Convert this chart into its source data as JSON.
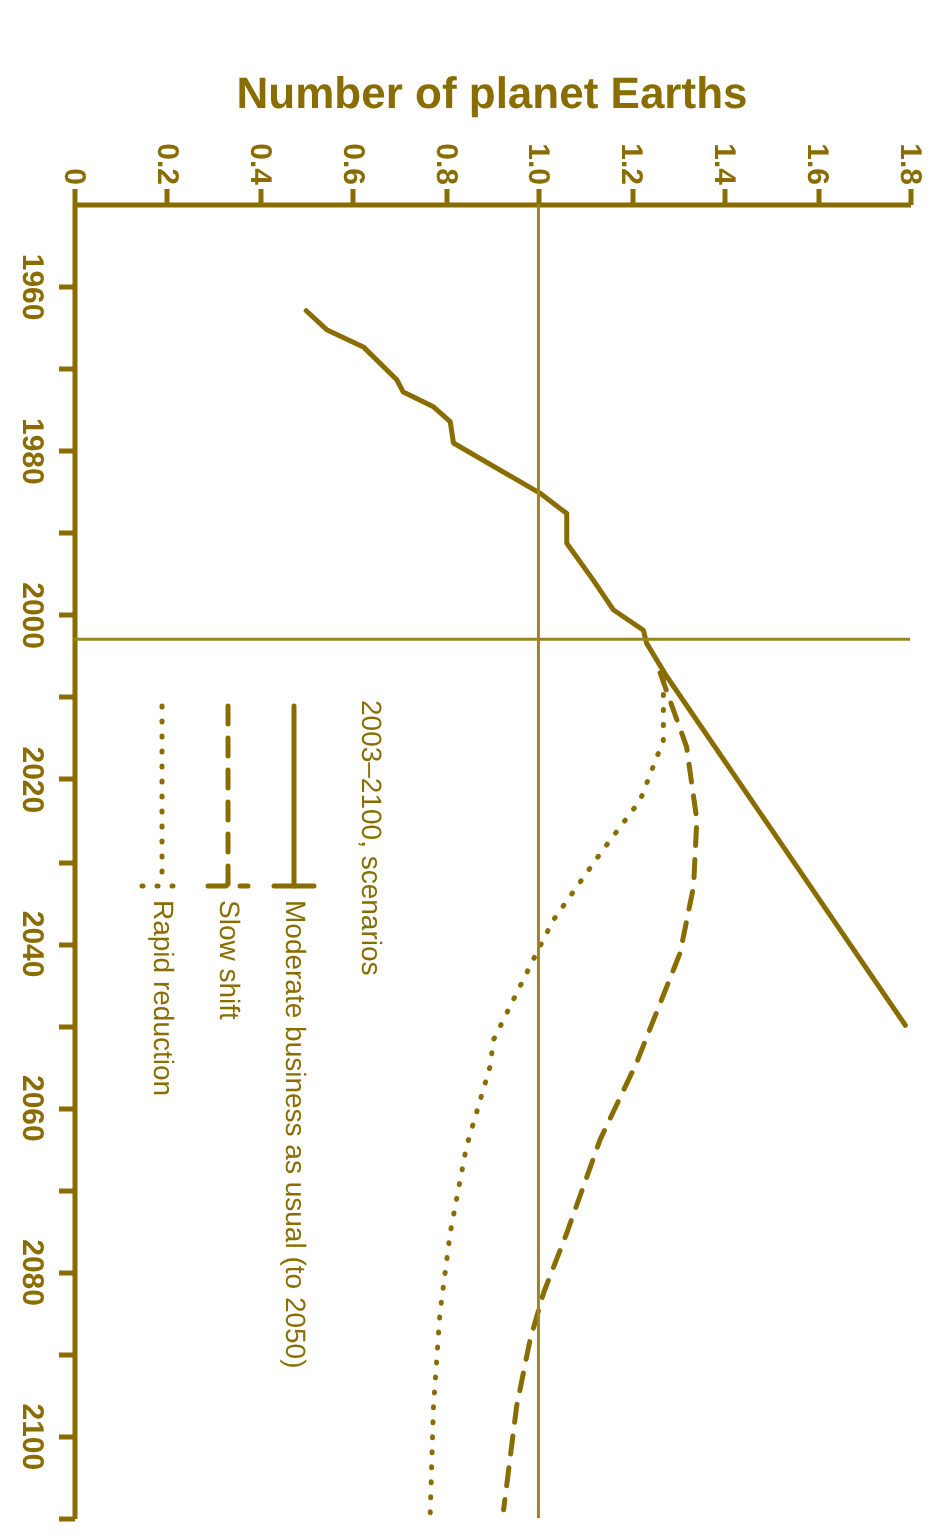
{
  "chart_data": {
    "type": "line",
    "title": "Number of planet Earths",
    "legend_title": "2003–2100, scenarios",
    "legend": "bottom left",
    "grid": false,
    "xlim": [
      0,
      1.8
    ],
    "xticks": [
      0,
      0.2,
      0.4,
      0.6,
      0.8,
      {
        "value": 1,
        "label": "1.0"
      },
      1.2,
      1.4,
      1.6,
      1.8
    ],
    "ylim": [
      2110,
      1950
    ],
    "yticks": [
      1960,
      {
        "value": 1970,
        "label": null
      },
      1980,
      {
        "value": 1990,
        "label": null
      },
      2000,
      {
        "value": 2010,
        "label": null
      },
      2020,
      {
        "value": 2030,
        "label": null
      },
      2040,
      {
        "value": 2050,
        "label": null
      },
      2060,
      {
        "value": 2070,
        "label": null
      },
      2080,
      {
        "value": 2090,
        "label": null
      },
      2100,
      {
        "value": 2110,
        "label": null
      }
    ],
    "series": [
      {
        "name": "Moderate business as usual (to 2050)",
        "color": "#8a6d00",
        "line_style": "solid",
        "x": [
          0.5,
          0.544,
          0.623,
          0.695,
          0.709,
          0.774,
          0.81,
          0.817,
          1.003,
          1.061,
          1.061,
          1.118,
          1.161,
          1.226,
          1.233,
          1.276,
          1.79
        ],
        "values": [
          1963,
          1965.3,
          1967.4,
          1971.4,
          1972.9,
          1974.7,
          1976.5,
          1979.1,
          1985.2,
          1987.7,
          1991.3,
          1995.8,
          1999.4,
          2001.9,
          2003.5,
          2007.5,
          2050
        ]
      },
      {
        "name": "Slow shift",
        "color": "#8a6d00",
        "line_style": "dashed",
        "x": [
          1.262,
          1.319,
          1.341,
          1.334,
          1.305,
          1.211,
          1.133,
          1.061,
          1.011,
          0.982,
          0.953,
          0.925
        ],
        "values": [
          2007.1,
          2016.1,
          2025,
          2033.1,
          2041.2,
          2054.6,
          2063.9,
          2075.3,
          2082.6,
          2088.3,
          2096.4,
          2109
        ]
      },
      {
        "name": "Rapid reduction",
        "color": "#8a6d00",
        "line_style": "dotted",
        "x": [
          1.269,
          1.269,
          1.219,
          1.133,
          1.032,
          0.996,
          0.903,
          0.896,
          0.845,
          0.81,
          0.788,
          0.774,
          0.767
        ],
        "values": [
          2007.9,
          2015.3,
          2022.6,
          2029.1,
          2037.2,
          2041.2,
          2051.8,
          2055,
          2064.8,
          2075.3,
          2085,
          2096.4,
          2109.4
        ]
      }
    ],
    "ref_lines": [
      {
        "axis": "x",
        "value": 1,
        "label": null,
        "color": "#9c8420"
      },
      {
        "axis": "y",
        "value": 2003,
        "label": null,
        "color": "#9c8420"
      }
    ]
  }
}
